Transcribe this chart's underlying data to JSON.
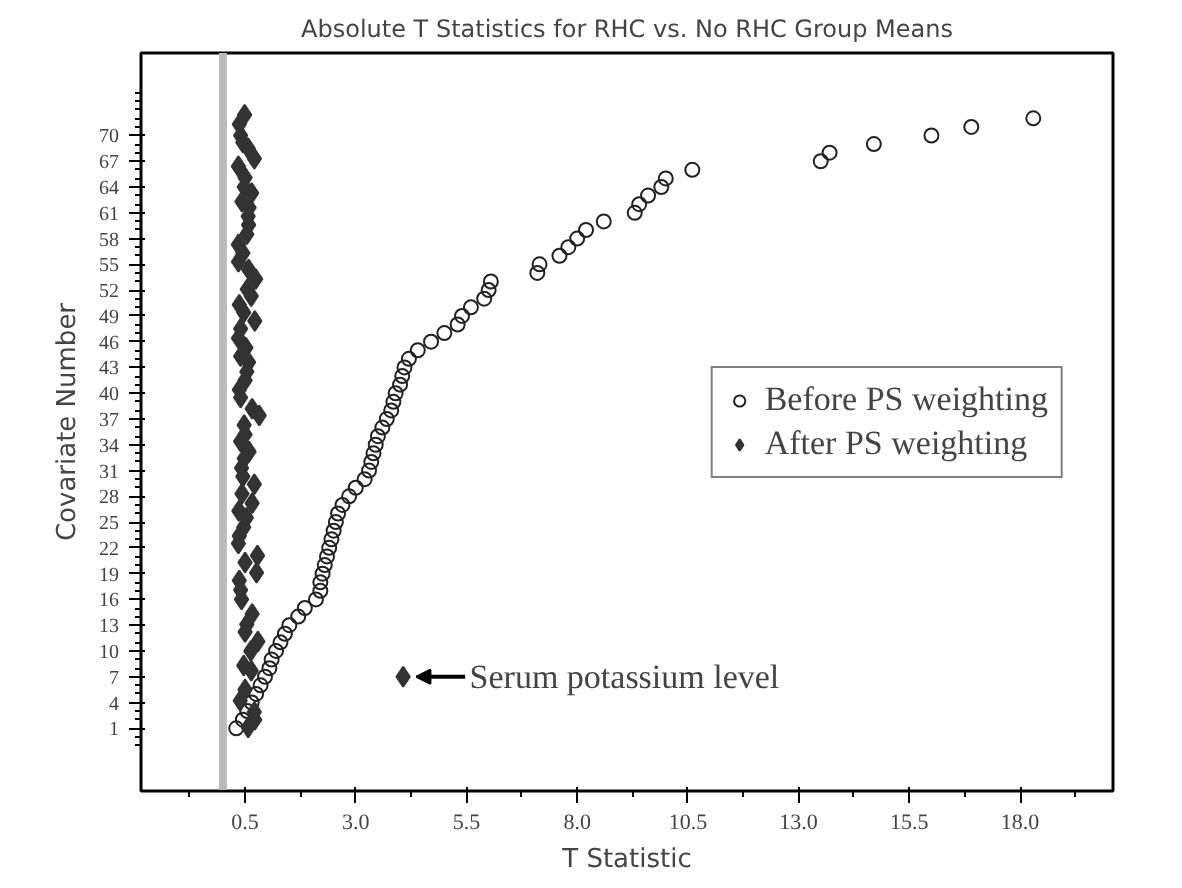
{
  "chart_data": {
    "type": "scatter",
    "title": "Absolute T Statistics for RHC vs. No RHC Group Means",
    "xlabel": "T Statistic",
    "ylabel": "Covariate Number",
    "xlim": [
      -1.85,
      20.1
    ],
    "ylim": [
      -6.3,
      79.6
    ],
    "xticks": [
      0.5,
      {
        "value": 3,
        "label": "3.0"
      },
      5.5,
      {
        "value": 8,
        "label": "8.0"
      },
      10.5,
      {
        "value": 13,
        "label": "13.0"
      },
      15.5,
      {
        "value": 18,
        "label": "18.0"
      }
    ],
    "yticks": [
      1,
      4,
      7,
      10,
      13,
      16,
      19,
      22,
      25,
      28,
      31,
      34,
      37,
      40,
      43,
      46,
      49,
      52,
      55,
      58,
      61,
      64,
      67,
      70
    ],
    "grid": false,
    "legend": "right",
    "ref_lines": [
      {
        "axis": "x",
        "value": 0,
        "label": null,
        "color": "#bbbbbb"
      }
    ],
    "annotations": [
      {
        "text": "Serum potassium level",
        "x": 4.07,
        "y": 7
      }
    ],
    "series": [
      {
        "name": "Before PS weighting",
        "color": "#222222",
        "marker": "circle",
        "x": [
          0.3,
          0.45,
          0.55,
          0.65,
          0.75,
          0.85,
          0.95,
          1.05,
          1.1,
          1.2,
          1.3,
          1.4,
          1.5,
          1.7,
          1.85,
          2.1,
          2.2,
          2.2,
          2.25,
          2.3,
          2.35,
          2.4,
          2.45,
          2.5,
          2.55,
          2.6,
          2.7,
          2.85,
          3.0,
          3.2,
          3.3,
          3.35,
          3.4,
          3.45,
          3.5,
          3.6,
          3.7,
          3.8,
          3.85,
          3.9,
          4.0,
          4.05,
          4.1,
          4.2,
          4.4,
          4.7,
          5.0,
          5.3,
          5.4,
          5.6,
          5.9,
          6.0,
          6.05,
          7.1,
          7.15,
          7.6,
          7.8,
          8.0,
          8.2,
          8.6,
          9.3,
          9.4,
          9.6,
          9.9,
          10.0,
          10.6,
          13.5,
          13.7,
          14.7,
          16.0,
          16.9,
          18.3
        ],
        "values": [
          1,
          2,
          3,
          4,
          5,
          6,
          7,
          8,
          9,
          10,
          11,
          12,
          13,
          14,
          15,
          16,
          17,
          18,
          19,
          20,
          21,
          22,
          23,
          24,
          25,
          26,
          27,
          28,
          29,
          30,
          31,
          32,
          33,
          34,
          35,
          36,
          37,
          38,
          39,
          40,
          41,
          42,
          43,
          44,
          45,
          46,
          47,
          48,
          49,
          50,
          51,
          52,
          53,
          54,
          55,
          56,
          57,
          58,
          59,
          60,
          61,
          62,
          63,
          64,
          65,
          66,
          67,
          68,
          69,
          70,
          71,
          72
        ]
      },
      {
        "name": "After PS weighting",
        "color": "#333333",
        "marker": "diamond",
        "x": [
          0.49,
          0.37,
          0.4,
          0.45,
          0.57,
          0.71,
          0.35,
          0.5,
          0.48,
          0.65,
          0.43,
          0.59,
          0.57,
          0.58,
          0.54,
          0.35,
          0.45,
          0.35,
          0.58,
          0.74,
          0.55,
          0.64,
          0.37,
          0.47,
          0.72,
          0.4,
          0.35,
          0.52,
          0.4,
          0.58,
          0.54,
          0.5,
          0.37,
          0.4,
          0.66,
          0.82,
          0.48,
          0.5,
          0.4,
          0.59,
          0.48,
          0.42,
          0.45,
          0.71,
          0.43,
          0.66,
          0.36,
          0.53,
          0.47,
          0.37,
          0.35,
          0.78,
          0.5,
          0.76,
          0.37,
          0.4,
          0.42,
          0.66,
          0.54,
          0.5,
          0.79,
          0.63,
          0.47,
          0.64,
          0.5,
          0.39,
          0.71,
          0.72,
          0.57,
          4.07
        ],
        "values": [
          72.4,
          71.3,
          70.0,
          69.2,
          68.5,
          67.3,
          66.4,
          65.1,
          64.0,
          63.3,
          62.3,
          61.6,
          60.6,
          59.6,
          58.5,
          57.3,
          56.3,
          55.3,
          54.4,
          53.3,
          52.1,
          51.3,
          50.3,
          49.4,
          48.4,
          47.5,
          46.4,
          45.3,
          44.3,
          43.6,
          42.5,
          41.5,
          40.4,
          39.5,
          38.2,
          37.4,
          36.3,
          35.2,
          34.4,
          33.2,
          32.4,
          31.3,
          30.3,
          29.4,
          28.3,
          27.2,
          26.3,
          25.5,
          24.4,
          23.4,
          22.5,
          21.1,
          20.3,
          19.1,
          18.2,
          17.1,
          16.0,
          14.3,
          13.1,
          12.2,
          11.1,
          10.0,
          8.3,
          7.7,
          5.5,
          4.2,
          2.9,
          2.0,
          1.1,
          7.0
        ]
      }
    ]
  }
}
